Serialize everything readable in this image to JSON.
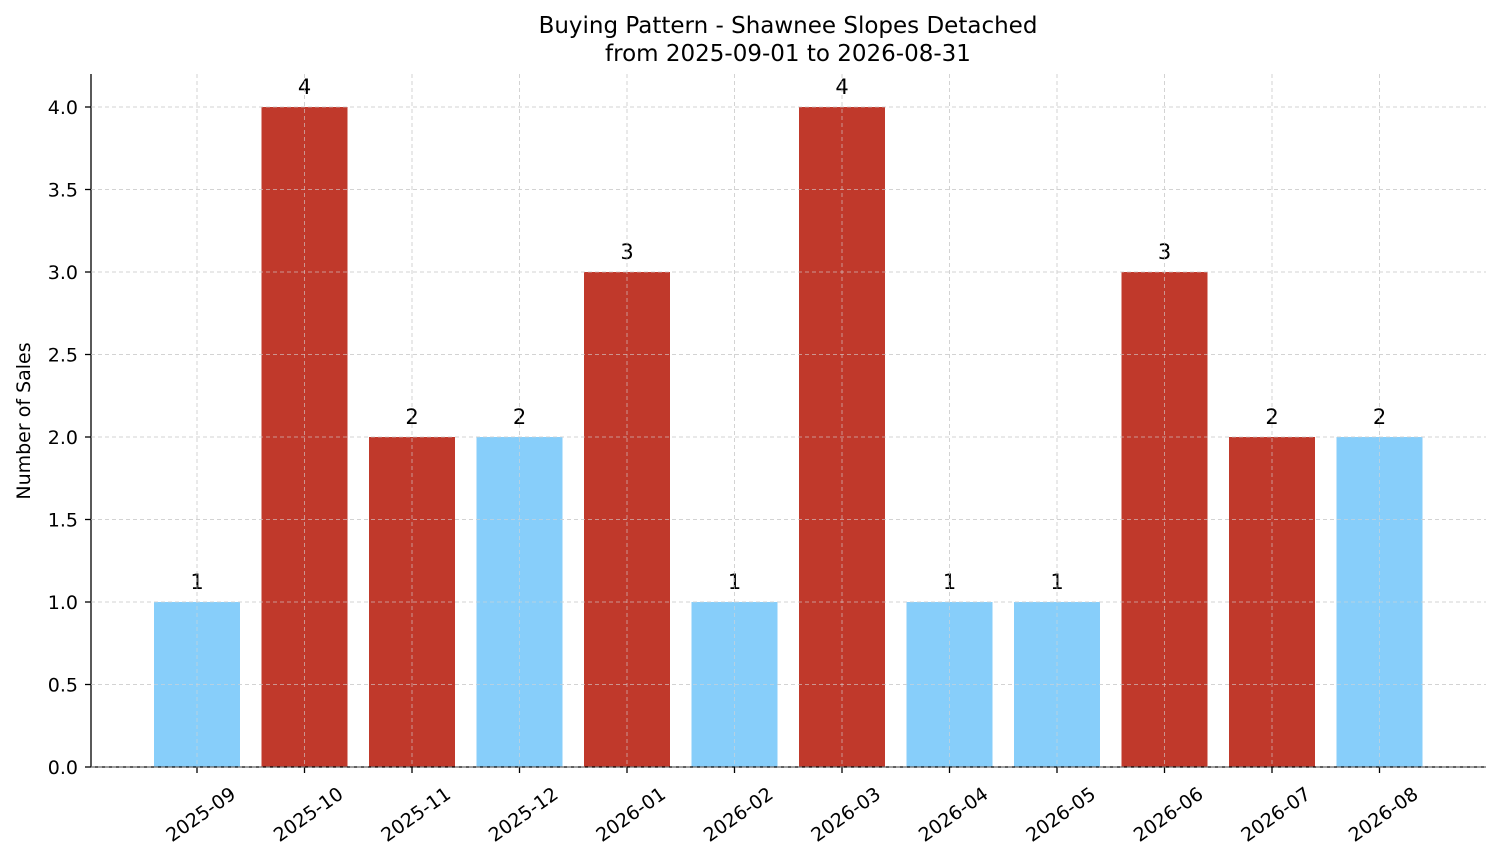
{
  "chart_data": {
    "type": "bar",
    "title": "Buying Pattern - Shawnee Slopes Detached",
    "subtitle": "from 2025-09-01 to 2026-08-31",
    "xlabel": "",
    "ylabel": "Number of Sales",
    "ylim": [
      0,
      4.2
    ],
    "yticks": [
      "0.0",
      "0.5",
      "1.0",
      "1.5",
      "2.0",
      "2.5",
      "3.0",
      "3.5",
      "4.0"
    ],
    "categories": [
      "2025-09",
      "2025-10",
      "2025-11",
      "2025-12",
      "2026-01",
      "2026-02",
      "2026-03",
      "2026-04",
      "2026-05",
      "2026-06",
      "2026-07",
      "2026-08"
    ],
    "values": [
      1,
      4,
      2,
      2,
      3,
      1,
      4,
      1,
      1,
      3,
      2,
      2
    ],
    "bar_colors": [
      "#87cefa",
      "#c0392b",
      "#c0392b",
      "#87cefa",
      "#c0392b",
      "#87cefa",
      "#c0392b",
      "#87cefa",
      "#87cefa",
      "#c0392b",
      "#c0392b",
      "#87cefa"
    ],
    "grid": true,
    "data_labels": [
      "1",
      "4",
      "2",
      "2",
      "3",
      "1",
      "4",
      "1",
      "1",
      "3",
      "2",
      "2"
    ]
  }
}
